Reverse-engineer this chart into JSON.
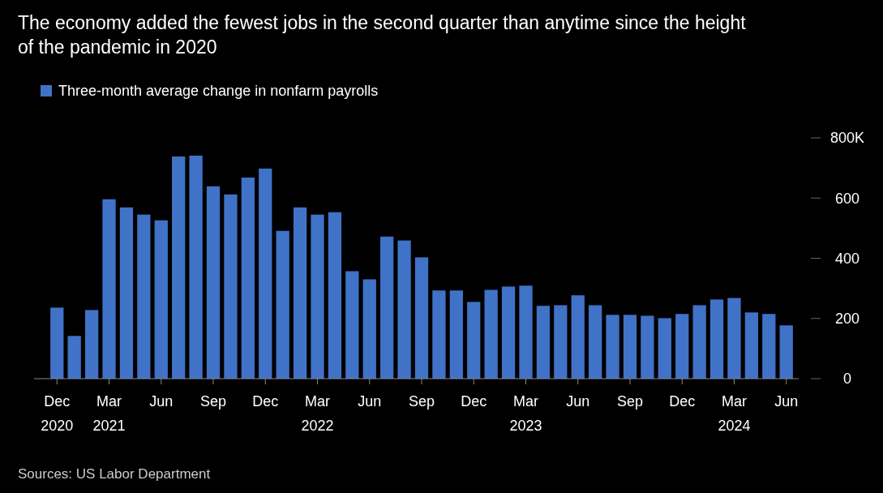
{
  "chart_data": {
    "type": "bar",
    "title": "The economy added the fewest jobs in the second quarter than anytime since the height of the pandemic in 2020",
    "categories": [
      "Dec\n2020",
      null,
      null,
      "Mar\n2021",
      null,
      null,
      "Jun",
      null,
      null,
      "Sep",
      null,
      null,
      "Dec",
      null,
      null,
      "Mar\n2022",
      null,
      null,
      "Jun",
      null,
      null,
      "Sep",
      null,
      null,
      "Dec",
      null,
      null,
      "Mar\n2023",
      null,
      null,
      "Jun",
      null,
      null,
      "Sep",
      null,
      null,
      "Dec",
      null,
      null,
      "Mar\n2024",
      null,
      null,
      "Jun"
    ],
    "series": [
      {
        "name": "Three-month average change in nonfarm payrolls",
        "color": "#4072c8",
        "values": [
          236,
          142,
          228,
          596,
          569,
          545,
          526,
          738,
          741,
          639,
          612,
          668,
          698,
          491,
          569,
          545,
          553,
          357,
          330,
          472,
          459,
          403,
          293,
          293,
          255,
          295,
          306,
          309,
          242,
          244,
          277,
          244,
          212,
          212,
          209,
          201,
          215,
          244,
          263,
          268,
          220,
          215,
          177
        ]
      }
    ],
    "ylim": [
      0,
      800
    ],
    "yticks": [
      0,
      200,
      400,
      600,
      {
        "value": 800,
        "label": "800K"
      }
    ],
    "legend": "top left",
    "grid": false,
    "annotations": [
      "Sources: US Labor Department"
    ]
  }
}
